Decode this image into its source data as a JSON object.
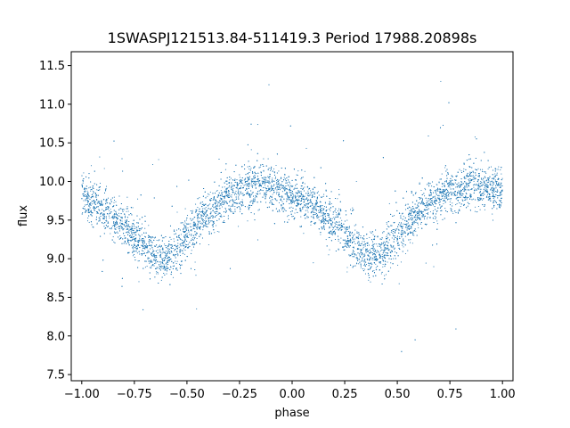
{
  "chart_data": {
    "type": "scatter",
    "title": "1SWASPJ121513.84-511419.3 Period 17988.20898s",
    "xlabel": "phase",
    "ylabel": "flux",
    "xlim": [
      -1.05,
      1.05
    ],
    "ylim": [
      7.42,
      11.68
    ],
    "xticks": [
      -1.0,
      -0.75,
      -0.5,
      -0.25,
      0.0,
      0.25,
      0.5,
      0.75,
      1.0
    ],
    "xtick_labels": [
      "−1.00",
      "−0.75",
      "−0.50",
      "−0.25",
      "0.00",
      "0.25",
      "0.50",
      "0.75",
      "1.00"
    ],
    "yticks": [
      7.5,
      8.0,
      8.5,
      9.0,
      9.5,
      10.0,
      10.5,
      11.0,
      11.5
    ],
    "ytick_labels": [
      "7.5",
      "8.0",
      "8.5",
      "9.0",
      "9.5",
      "10.0",
      "10.5",
      "11.0",
      "11.5"
    ],
    "grid": false,
    "point_color": "#1f77b4",
    "series_shape": {
      "description_x": [
        -1.0,
        -0.85,
        -0.6,
        -0.4,
        -0.15,
        0.05,
        0.25,
        0.4,
        0.6,
        0.85,
        1.0
      ],
      "description_y": [
        9.85,
        9.55,
        9.02,
        9.4,
        9.95,
        9.85,
        9.45,
        9.02,
        9.5,
        9.92,
        9.85
      ]
    },
    "points": [
      [
        -1.0,
        9.86
      ],
      [
        -0.98,
        9.8
      ],
      [
        -0.96,
        9.76
      ],
      [
        -0.94,
        9.72
      ],
      [
        -0.92,
        9.67
      ],
      [
        -0.9,
        9.62
      ],
      [
        -0.88,
        9.58
      ],
      [
        -0.86,
        9.55
      ],
      [
        -0.84,
        9.5
      ],
      [
        -0.82,
        9.46
      ],
      [
        -0.8,
        9.41
      ],
      [
        -0.78,
        9.37
      ],
      [
        -0.76,
        9.33
      ],
      [
        -0.74,
        9.27
      ],
      [
        -0.72,
        9.22
      ],
      [
        -0.7,
        9.16
      ],
      [
        -0.68,
        9.11
      ],
      [
        -0.66,
        9.07
      ],
      [
        -0.64,
        9.04
      ],
      [
        -0.62,
        9.02
      ],
      [
        -0.6,
        9.03
      ],
      [
        -0.58,
        9.06
      ],
      [
        -0.56,
        9.11
      ],
      [
        -0.54,
        9.17
      ],
      [
        -0.52,
        9.23
      ],
      [
        -0.5,
        9.29
      ],
      [
        -0.48,
        9.35
      ],
      [
        -0.46,
        9.41
      ],
      [
        -0.44,
        9.47
      ],
      [
        -0.42,
        9.53
      ],
      [
        -0.4,
        9.58
      ],
      [
        -0.38,
        9.63
      ],
      [
        -0.36,
        9.68
      ],
      [
        -0.34,
        9.72
      ],
      [
        -0.32,
        9.77
      ],
      [
        -0.3,
        9.81
      ],
      [
        -0.28,
        9.84
      ],
      [
        -0.26,
        9.87
      ],
      [
        -0.24,
        9.9
      ],
      [
        -0.22,
        9.92
      ],
      [
        -0.2,
        9.94
      ],
      [
        -0.18,
        9.95
      ],
      [
        -0.16,
        9.96
      ],
      [
        -0.14,
        9.95
      ],
      [
        -0.12,
        9.94
      ],
      [
        -0.1,
        9.93
      ],
      [
        -0.08,
        9.91
      ],
      [
        -0.06,
        9.89
      ],
      [
        -0.04,
        9.87
      ],
      [
        -0.02,
        9.85
      ],
      [
        0.0,
        9.83
      ],
      [
        0.02,
        9.8
      ],
      [
        0.04,
        9.77
      ],
      [
        0.06,
        9.74
      ],
      [
        0.08,
        9.71
      ],
      [
        0.1,
        9.67
      ],
      [
        0.12,
        9.63
      ],
      [
        0.14,
        9.59
      ],
      [
        0.16,
        9.55
      ],
      [
        0.18,
        9.51
      ],
      [
        0.2,
        9.46
      ],
      [
        0.22,
        9.41
      ],
      [
        0.24,
        9.36
      ],
      [
        0.26,
        9.3
      ],
      [
        0.28,
        9.24
      ],
      [
        0.3,
        9.18
      ],
      [
        0.32,
        9.12
      ],
      [
        0.34,
        9.07
      ],
      [
        0.36,
        9.04
      ],
      [
        0.38,
        9.02
      ],
      [
        0.4,
        9.03
      ],
      [
        0.42,
        9.06
      ],
      [
        0.44,
        9.11
      ],
      [
        0.46,
        9.17
      ],
      [
        0.48,
        9.24
      ],
      [
        0.5,
        9.31
      ],
      [
        0.52,
        9.38
      ],
      [
        0.54,
        9.44
      ],
      [
        0.56,
        9.5
      ],
      [
        0.58,
        9.56
      ],
      [
        0.6,
        9.61
      ],
      [
        0.62,
        9.66
      ],
      [
        0.64,
        9.7
      ],
      [
        0.66,
        9.74
      ],
      [
        0.68,
        9.77
      ],
      [
        0.7,
        9.8
      ],
      [
        0.72,
        9.83
      ],
      [
        0.74,
        9.86
      ],
      [
        0.76,
        9.88
      ],
      [
        0.78,
        9.9
      ],
      [
        0.8,
        9.92
      ],
      [
        0.82,
        9.93
      ],
      [
        0.84,
        9.94
      ],
      [
        0.86,
        9.94
      ],
      [
        0.88,
        9.93
      ],
      [
        0.9,
        9.92
      ],
      [
        0.92,
        9.91
      ],
      [
        0.94,
        9.9
      ],
      [
        0.96,
        9.89
      ],
      [
        0.98,
        9.88
      ],
      [
        1.0,
        9.86
      ]
    ]
  }
}
